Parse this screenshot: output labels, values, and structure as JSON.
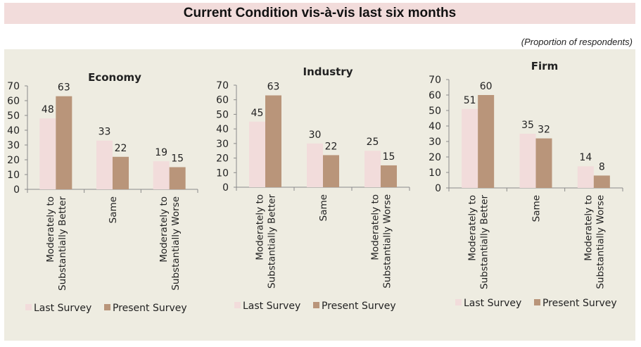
{
  "header": {
    "title": "Current Condition vis-à-vis last six months",
    "note": "(Proportion of respondents)"
  },
  "colors": {
    "last_survey": "#f2dcdb",
    "present_survey": "#b9957a"
  },
  "chart_data": [
    {
      "type": "bar",
      "title": "Economy",
      "categories": [
        "Moderately to Substantially Better",
        "Same",
        "Moderately to Substantially Worse"
      ],
      "category_lines": [
        [
          "Moderately to",
          "Substantially Better"
        ],
        [
          "Same"
        ],
        [
          "Moderately to",
          "Substantially Worse"
        ]
      ],
      "series": [
        {
          "name": "Last Survey",
          "values": [
            48,
            33,
            19
          ]
        },
        {
          "name": "Present Survey",
          "values": [
            63,
            22,
            15
          ]
        }
      ],
      "ylim": [
        0,
        70
      ],
      "yticks": [
        0,
        10,
        20,
        30,
        40,
        50,
        60,
        70
      ],
      "legend": "bottom",
      "grid": false
    },
    {
      "type": "bar",
      "title": "Industry",
      "categories": [
        "Moderately to Substantially Better",
        "Same",
        "Moderately to Substantially Worse"
      ],
      "category_lines": [
        [
          "Moderately to",
          "Substantially Better"
        ],
        [
          "Same"
        ],
        [
          "Moderately to",
          "Substantially Worse"
        ]
      ],
      "series": [
        {
          "name": "Last Survey",
          "values": [
            45,
            30,
            25
          ]
        },
        {
          "name": "Present Survey",
          "values": [
            63,
            22,
            15
          ]
        }
      ],
      "ylim": [
        0,
        70
      ],
      "yticks": [
        0,
        10,
        20,
        30,
        40,
        50,
        60,
        70
      ],
      "legend": "bottom",
      "grid": false
    },
    {
      "type": "bar",
      "title": "Firm",
      "categories": [
        "Moderately to Substantially Better",
        "Same",
        "Moderately to Substantially Worse"
      ],
      "category_lines": [
        [
          "Moderately to",
          "Substantially Better"
        ],
        [
          "Same"
        ],
        [
          "Moderately to",
          "Substantially Worse"
        ]
      ],
      "series": [
        {
          "name": "Last Survey",
          "values": [
            51,
            35,
            14
          ]
        },
        {
          "name": "Present Survey",
          "values": [
            60,
            32,
            8
          ]
        }
      ],
      "ylim": [
        0,
        70
      ],
      "yticks": [
        0,
        10,
        20,
        30,
        40,
        50,
        60,
        70
      ],
      "legend": "bottom",
      "grid": false
    }
  ]
}
